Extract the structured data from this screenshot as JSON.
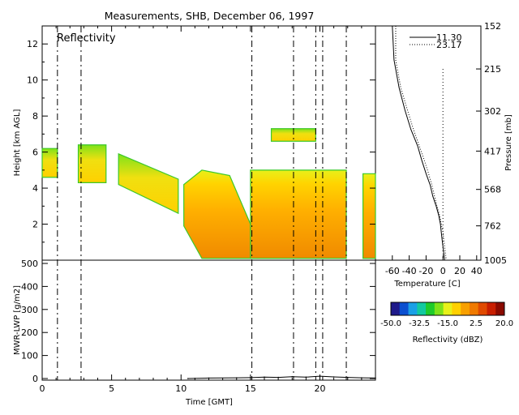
{
  "title": "Measurements, SHB, December 06, 1997",
  "panel_label": "Reflectivity",
  "colors": {
    "background": "#ffffff",
    "axes": "#000000",
    "colorbar": [
      "#1f1a8a",
      "#0b4fd0",
      "#1aa0e6",
      "#12c9a0",
      "#1ecb2a",
      "#7ee21a",
      "#e8f11a",
      "#ffd000",
      "#f8a000",
      "#f07a00",
      "#e04a00",
      "#c81e00",
      "#8a0a00"
    ]
  },
  "chart_data": [
    {
      "type": "heatmap",
      "name": "reflectivity",
      "ylabel": "Height [km AGL]",
      "xlim": [
        0,
        24
      ],
      "ylim": [
        0,
        13
      ],
      "yticks": [
        "2",
        "4",
        "6",
        "8",
        "10",
        "12"
      ],
      "cloud_regions": [
        {
          "x": [
            0.0,
            1.1
          ],
          "base": 4.6,
          "top": 6.2,
          "dbz": -10
        },
        {
          "x": [
            2.6,
            4.6
          ],
          "base": 4.3,
          "top": 6.4,
          "dbz": -12
        },
        {
          "x": [
            5.5,
            9.8
          ],
          "base": 2.6,
          "top": 5.9,
          "dbz": -10
        },
        {
          "x": [
            10.2,
            15.0
          ],
          "base": 0.1,
          "top": 5.0,
          "dbz": 0
        },
        {
          "x": [
            15.0,
            21.9
          ],
          "base": 0.1,
          "top": 5.0,
          "dbz": 0
        },
        {
          "x": [
            16.5,
            19.7
          ],
          "base": 6.6,
          "top": 7.3,
          "dbz": -15
        },
        {
          "x": [
            23.1,
            24.0
          ],
          "base": 0.1,
          "top": 4.8,
          "dbz": 0
        }
      ],
      "sounding_times": [
        1.1,
        2.8,
        15.1,
        18.1,
        19.7,
        20.2,
        21.9
      ]
    },
    {
      "type": "line",
      "name": "mwr-lwp",
      "ylabel": "MWR-LWP [g/m2]",
      "xlabel": "Time [GMT]",
      "xlim": [
        0,
        24
      ],
      "ylim": [
        0,
        500
      ],
      "xticks": [
        "0",
        "5",
        "10",
        "15",
        "20"
      ],
      "yticks": [
        "0",
        "100",
        "200",
        "300",
        "400",
        "500"
      ],
      "x": [
        10.5,
        12,
        14,
        15,
        16,
        17,
        18,
        19,
        20,
        21,
        22,
        23,
        24
      ],
      "y": [
        0,
        2,
        3,
        4,
        6,
        5,
        8,
        6,
        10,
        7,
        5,
        3,
        2
      ]
    },
    {
      "type": "line",
      "name": "temperature-profile",
      "xlabel": "Temperature [C]",
      "ylabel": "Pressure [mb]",
      "xlim": [
        -80,
        45
      ],
      "xticks": [
        "-60",
        "-40",
        "-20",
        "0",
        "20",
        "40"
      ],
      "yticks": [
        "152",
        "215",
        "302",
        "417",
        "568",
        "762",
        "1005"
      ],
      "series": [
        {
          "name": "11.30",
          "style": "solid",
          "pressure": [
            152,
            200,
            250,
            300,
            350,
            400,
            450,
            500,
            550,
            600,
            650,
            700,
            750,
            800,
            850,
            900,
            950,
            1005
          ],
          "temp": [
            -60,
            -58,
            -52,
            -45,
            -38,
            -30,
            -25,
            -20,
            -15,
            -12,
            -8,
            -5,
            -3,
            -2,
            -1,
            0,
            1,
            2
          ]
        },
        {
          "name": "23.17",
          "style": "dotted",
          "pressure": [
            152,
            200,
            250,
            300,
            350,
            400,
            450,
            500,
            550,
            600,
            650,
            700,
            750,
            800,
            850,
            900,
            950,
            1005
          ],
          "temp": [
            -56,
            -56,
            -50,
            -42,
            -35,
            -28,
            -22,
            -17,
            -13,
            -10,
            -7,
            -4,
            -2,
            0,
            1,
            2,
            3,
            4
          ]
        }
      ]
    },
    {
      "type": "colorbar",
      "name": "reflectivity-scale",
      "label": "Reflectivity (dBZ)",
      "range": [
        -50,
        20
      ],
      "ticks": [
        "-50.0",
        "-32.5",
        "-15.0",
        "2.5",
        "20.0"
      ]
    }
  ]
}
